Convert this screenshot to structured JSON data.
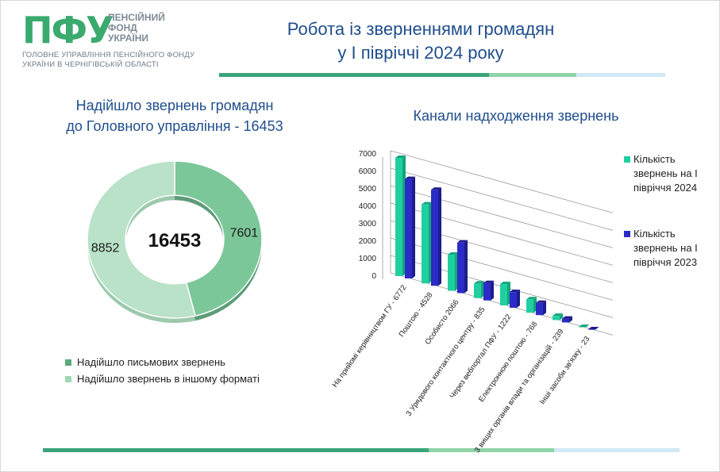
{
  "header": {
    "logo_mark": "ПФУ",
    "logo_words": [
      "ПЕНСІЙНИЙ",
      "ФОНД",
      "УКРАЇНИ"
    ],
    "org_lines": [
      "ГОЛОВНЕ УПРАВЛІННЯ ПЕНСІЙНОГО ФОНДУ",
      "УКРАЇНИ В ЧЕРНІГІВСЬКІЙ ОБЛАСТІ"
    ],
    "title_lines": [
      "Робота із зверненнями громадян",
      "у І півріччі 2024 року"
    ]
  },
  "colors": {
    "accent_dark": "#3aa57a",
    "accent_mid": "#8fd3a8",
    "accent_light": "#cfeaf5",
    "title_blue": "#1f4e8c",
    "series_2024": "#1fcf9f",
    "series_2023": "#2b2bc8",
    "donut_written": "#7cc79a",
    "donut_other": "#b9e2c8"
  },
  "chart_data": [
    {
      "type": "pie",
      "title_lines": [
        "Надійшло звернень громадян",
        "до Головного управління - 16453"
      ],
      "center_label": "16453",
      "slices": [
        {
          "name": "Надійшло письмових звернень",
          "value": 7601,
          "label": "7601"
        },
        {
          "name": "Надійшло звернень в іншому форматі",
          "value": 8852,
          "label": "8852"
        }
      ],
      "legend_placement": "bottom"
    },
    {
      "type": "bar",
      "title": "Канали надходження звернень",
      "categories": [
        "На прийомі керівництвом ГУ - 6772",
        "Поштою - 4528",
        "Особисто 2066",
        "З Урядового контактного центру - 835",
        "Через вебпортал ПФУ - 1222",
        "Електронною поштою - 768",
        "З вищих органів влади та організацій - 239",
        "Інші засоби зв'язку - 23"
      ],
      "series": [
        {
          "name": "Кількість звернень на І півріччя 2024",
          "values": [
            6772,
            4528,
            2066,
            835,
            1222,
            768,
            239,
            23
          ]
        },
        {
          "name": "Кількість звернень на І півріччя 2023",
          "values": [
            5700,
            5500,
            2900,
            1000,
            900,
            700,
            220,
            30
          ]
        }
      ],
      "y_ticks": [
        "0",
        "1000",
        "2000",
        "3000",
        "4000",
        "5000",
        "6000",
        "7000"
      ],
      "ylim": [
        0,
        7000
      ],
      "grid": true,
      "legend_placement": "right"
    }
  ]
}
